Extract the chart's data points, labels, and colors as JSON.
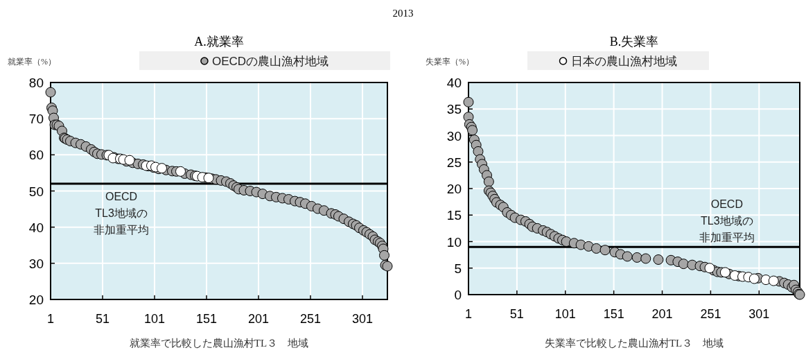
{
  "chart_data": [
    {
      "type": "scatter",
      "title": "A.就業率",
      "annotations": [
        "2013"
      ],
      "ylabel": "就業率（%）",
      "xlabel": "就業率で比較した農山漁村TL３　地域",
      "xlim": [
        1,
        325
      ],
      "xticks": [
        1,
        51,
        101,
        151,
        201,
        251,
        301
      ],
      "ylim": [
        20,
        80
      ],
      "yticks": [
        20,
        30,
        40,
        50,
        60,
        70,
        80
      ],
      "grid": true,
      "legend": "top",
      "marker": "circle",
      "ref_lines": [
        {
          "axis": "y",
          "value": 52,
          "label": "OECD TL3地域の非加重平均",
          "color": "#000000"
        }
      ],
      "series": [
        {
          "name": "OECDの農山漁村地域",
          "color": "#a6a6a6",
          "x": [
            1,
            2,
            3,
            4,
            5,
            7,
            9,
            12,
            14,
            15,
            17,
            20,
            25,
            30,
            35,
            40,
            43,
            46,
            50,
            55,
            62,
            66,
            74,
            80,
            85,
            90,
            95,
            100,
            105,
            112,
            118,
            122,
            130,
            136,
            140,
            150,
            156,
            160,
            165,
            170,
            174,
            177,
            180,
            182,
            187,
            193,
            199,
            205,
            212,
            218,
            224,
            230,
            236,
            241,
            246,
            252,
            258,
            264,
            271,
            275,
            278,
            283,
            288,
            292,
            295,
            298,
            302,
            305,
            308,
            311,
            313,
            316,
            318,
            320,
            321,
            322,
            323,
            325
          ],
          "values": [
            77.3,
            73,
            72.2,
            70.2,
            68.3,
            68.3,
            68,
            66.6,
            64.7,
            64.5,
            64.2,
            63.8,
            63.3,
            62.9,
            62.3,
            61.5,
            60.8,
            60.3,
            60.1,
            59.9,
            59.3,
            58.9,
            58.2,
            57.8,
            57.5,
            57.3,
            56.9,
            56.5,
            56.1,
            55.8,
            55.5,
            55.4,
            54.8,
            54.5,
            54.2,
            53.7,
            53.4,
            53.2,
            52.9,
            52.6,
            52.1,
            51.5,
            51,
            50.5,
            50.2,
            50,
            49.7,
            49.2,
            48.6,
            48.3,
            48,
            47.7,
            47.2,
            46.9,
            46.5,
            45.8,
            45.1,
            44.6,
            43.8,
            43.5,
            43,
            42.3,
            41.5,
            40.9,
            40.5,
            39.8,
            39.1,
            38.6,
            38,
            37.4,
            36.5,
            36,
            35.6,
            34.8,
            34,
            32.2,
            29.5,
            29.2
          ]
        },
        {
          "color": "#ffffff",
          "x": [
            57,
            61,
            68,
            71,
            77,
            93,
            98,
            102,
            108,
            126,
            142,
            147,
            153
          ],
          "values": [
            59.9,
            59.1,
            58.9,
            58.7,
            58.5,
            57,
            57,
            56.6,
            56.3,
            55.4,
            54.1,
            53.8,
            53.6
          ]
        }
      ]
    },
    {
      "type": "scatter",
      "title": "B.失業率",
      "ylabel": "失業率（%）",
      "xlabel": "失業率で比較した農山漁村TL３　地域",
      "xlim": [
        1,
        343
      ],
      "xticks": [
        1,
        51,
        101,
        151,
        201,
        251,
        301
      ],
      "ylim": [
        0,
        40
      ],
      "yticks": [
        0,
        5,
        10,
        15,
        20,
        25,
        30,
        35,
        40
      ],
      "grid": true,
      "legend": "top",
      "marker": "circle",
      "ref_lines": [
        {
          "axis": "y",
          "value": 9,
          "label": "OECD TL3地域の非加重平均",
          "color": "#000000"
        }
      ],
      "series": [
        {
          "color": "#a6a6a6",
          "x": [
            1,
            1,
            2,
            4,
            5,
            7,
            9,
            11,
            13,
            15,
            17,
            20,
            22,
            22,
            24,
            26,
            28,
            30,
            34,
            37,
            41,
            45,
            49,
            55,
            60,
            64,
            67,
            72,
            78,
            82,
            86,
            90,
            94,
            98,
            102,
            110,
            117,
            125,
            133,
            142,
            152,
            158,
            165,
            175,
            184,
            197,
            210,
            217,
            223,
            232,
            240,
            245,
            254,
            258,
            262,
            270,
            280,
            300,
            322,
            327,
            331,
            335,
            337,
            339,
            341,
            342,
            343
          ],
          "values": [
            36.3,
            33.5,
            32.1,
            31.6,
            31,
            29.2,
            28.2,
            27,
            25.5,
            24.6,
            23.6,
            22.5,
            21.3,
            19.6,
            19.2,
            18.6,
            18,
            17.4,
            16.9,
            16.5,
            15.5,
            15,
            14.5,
            14.1,
            13.8,
            13.3,
            12.8,
            12.5,
            12.1,
            11.8,
            11.4,
            11,
            10.6,
            10.3,
            10,
            9.7,
            9.4,
            9.1,
            8.7,
            8.4,
            8,
            7.6,
            7.2,
            7,
            6.8,
            6.6,
            6.5,
            6.2,
            5.8,
            5.6,
            5.4,
            5.2,
            4.6,
            4.3,
            4.2,
            3.9,
            3.5,
            3.1,
            2.5,
            2.2,
            1.9,
            1.4,
            1.8,
            0.9,
            0.5,
            0.1,
            0
          ]
        },
        {
          "name": "日本の農山漁村地域",
          "color": "#ffffff",
          "x": [
            250,
            266,
            276,
            284,
            290,
            296,
            308,
            316
          ],
          "values": [
            5,
            4.2,
            3.6,
            3.4,
            3.3,
            3,
            2.8,
            2.6
          ]
        }
      ]
    }
  ]
}
